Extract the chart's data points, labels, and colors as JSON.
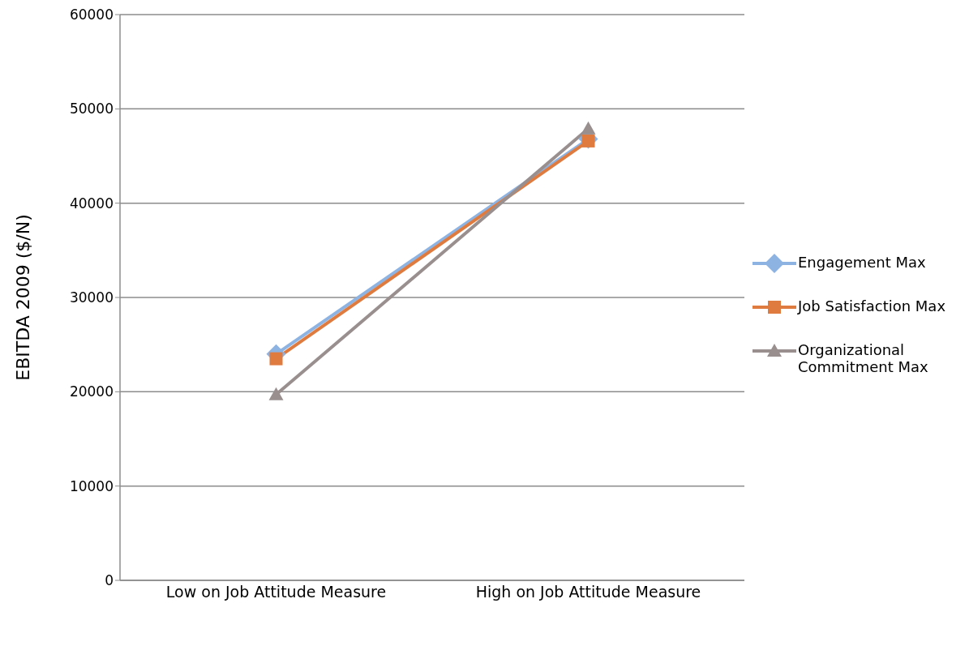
{
  "chart_data": {
    "type": "line",
    "ylabel": "EBITDA 2009 ($/N)",
    "categories": [
      "Low on Job Attitude Measure",
      "High on Job Attitude Measure"
    ],
    "series": [
      {
        "name": "Engagement Max",
        "color": "#8db3e2",
        "values": [
          24000,
          46800
        ],
        "marker": "diamond"
      },
      {
        "name": "Job Satisfaction Max",
        "color": "#e07b3f",
        "values": [
          23500,
          46600
        ],
        "marker": "square"
      },
      {
        "name": "Organizational Commitment Max",
        "color": "#998f8f",
        "values": [
          19700,
          47900
        ],
        "marker": "triangle"
      }
    ],
    "ylim": [
      0,
      60000
    ],
    "yticks": [
      0,
      10000,
      20000,
      30000,
      40000,
      50000,
      60000
    ],
    "grid": "y",
    "legend": "right"
  }
}
